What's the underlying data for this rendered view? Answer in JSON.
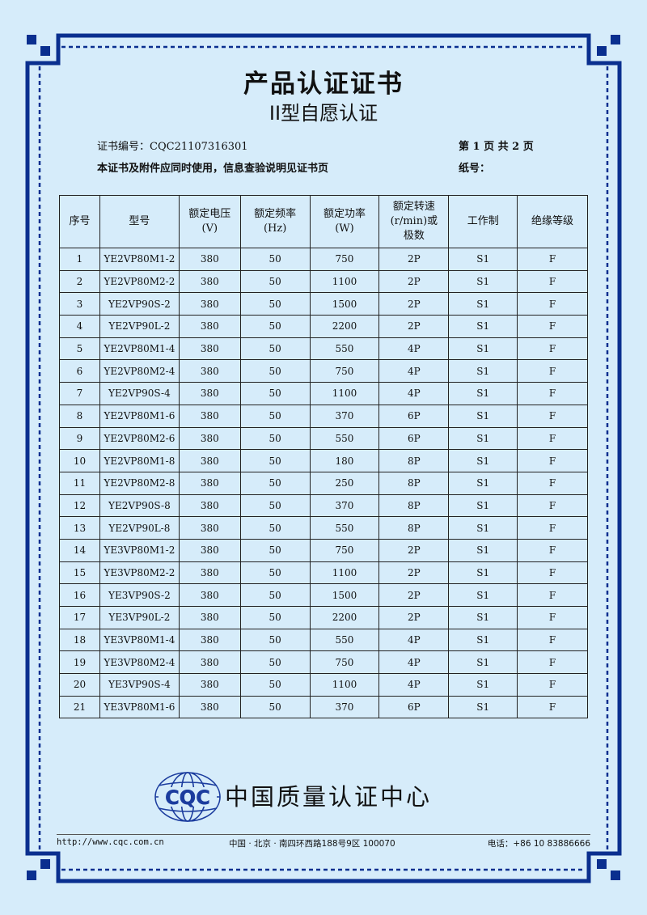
{
  "document": {
    "title": "产品认证证书",
    "subtitle": "II型自愿认证",
    "cert_no_label": "证书编号：",
    "cert_no": "CQC21107316301",
    "page_info": "第 1 页 共 2 页",
    "usage_note": "本证书及附件应同时使用，信息查验说明见证书页",
    "paper_no_label": "纸号："
  },
  "table": {
    "headers": [
      "序号",
      "型号",
      "额定电压\n(V)",
      "额定频率\n(Hz)",
      "额定功率\n(W)",
      "额定转速\n(r/min)或\n极数",
      "工作制",
      "绝缘等级"
    ],
    "rows": [
      [
        "1",
        "YE2VP80M1-2",
        "380",
        "50",
        "750",
        "2P",
        "S1",
        "F"
      ],
      [
        "2",
        "YE2VP80M2-2",
        "380",
        "50",
        "1100",
        "2P",
        "S1",
        "F"
      ],
      [
        "3",
        "YE2VP90S-2",
        "380",
        "50",
        "1500",
        "2P",
        "S1",
        "F"
      ],
      [
        "4",
        "YE2VP90L-2",
        "380",
        "50",
        "2200",
        "2P",
        "S1",
        "F"
      ],
      [
        "5",
        "YE2VP80M1-4",
        "380",
        "50",
        "550",
        "4P",
        "S1",
        "F"
      ],
      [
        "6",
        "YE2VP80M2-4",
        "380",
        "50",
        "750",
        "4P",
        "S1",
        "F"
      ],
      [
        "7",
        "YE2VP90S-4",
        "380",
        "50",
        "1100",
        "4P",
        "S1",
        "F"
      ],
      [
        "8",
        "YE2VP80M1-6",
        "380",
        "50",
        "370",
        "6P",
        "S1",
        "F"
      ],
      [
        "9",
        "YE2VP80M2-6",
        "380",
        "50",
        "550",
        "6P",
        "S1",
        "F"
      ],
      [
        "10",
        "YE2VP80M1-8",
        "380",
        "50",
        "180",
        "8P",
        "S1",
        "F"
      ],
      [
        "11",
        "YE2VP80M2-8",
        "380",
        "50",
        "250",
        "8P",
        "S1",
        "F"
      ],
      [
        "12",
        "YE2VP90S-8",
        "380",
        "50",
        "370",
        "8P",
        "S1",
        "F"
      ],
      [
        "13",
        "YE2VP90L-8",
        "380",
        "50",
        "550",
        "8P",
        "S1",
        "F"
      ],
      [
        "14",
        "YE3VP80M1-2",
        "380",
        "50",
        "750",
        "2P",
        "S1",
        "F"
      ],
      [
        "15",
        "YE3VP80M2-2",
        "380",
        "50",
        "1100",
        "2P",
        "S1",
        "F"
      ],
      [
        "16",
        "YE3VP90S-2",
        "380",
        "50",
        "1500",
        "2P",
        "S1",
        "F"
      ],
      [
        "17",
        "YE3VP90L-2",
        "380",
        "50",
        "2200",
        "2P",
        "S1",
        "F"
      ],
      [
        "18",
        "YE3VP80M1-4",
        "380",
        "50",
        "550",
        "4P",
        "S1",
        "F"
      ],
      [
        "19",
        "YE3VP80M2-4",
        "380",
        "50",
        "750",
        "4P",
        "S1",
        "F"
      ],
      [
        "20",
        "YE3VP90S-4",
        "380",
        "50",
        "1100",
        "4P",
        "S1",
        "F"
      ],
      [
        "21",
        "YE3VP80M1-6",
        "380",
        "50",
        "370",
        "6P",
        "S1",
        "F"
      ]
    ]
  },
  "footer": {
    "logo_text": "CQC",
    "org_name": "中国质量认证中心",
    "website": "http://www.cqc.com.cn",
    "address": "中国 · 北京 · 南四环西路188号9区   100070",
    "phone": "电话：+86 10 83886666"
  },
  "colors": {
    "border": "#0a2f8f",
    "background": "#d6ecfa"
  }
}
